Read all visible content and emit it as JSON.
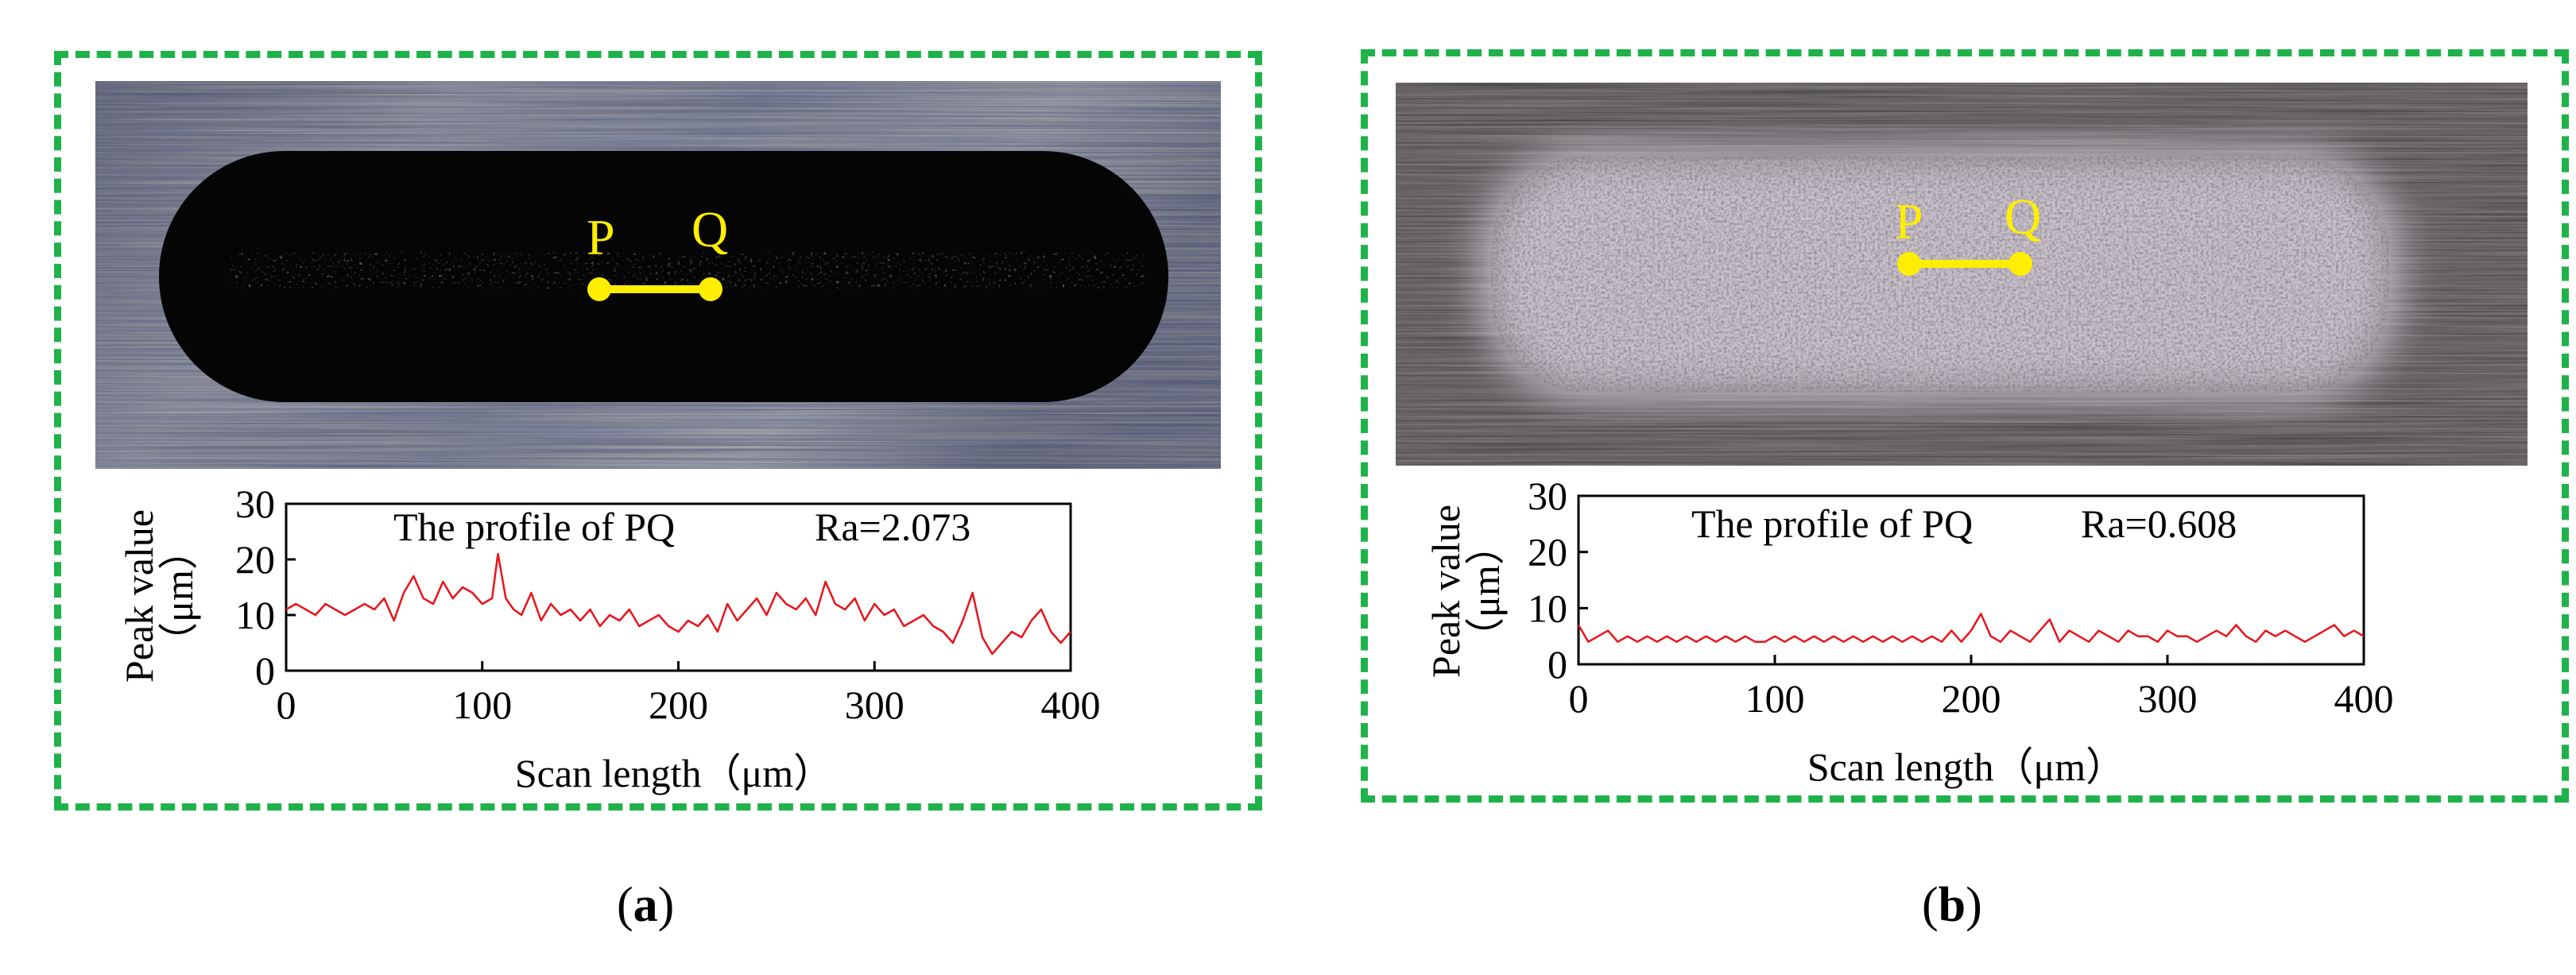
{
  "panels": [
    {
      "id": "a",
      "label": "a",
      "image": {
        "marker_start": "P",
        "marker_end": "Q",
        "colors": {
          "background": "#6a7a98",
          "wear_track": "#050505",
          "marker": "#ffee00"
        }
      },
      "chart_data": {
        "type": "line",
        "annotation": "The profile of PQ",
        "ra": "Ra=2.073",
        "xlabel": "Scan length（μm）",
        "ylabel_line1": "Peak value",
        "ylabel_line2": "（μm）",
        "xlim": [
          0,
          400
        ],
        "ylim": [
          0,
          30
        ],
        "xticks": [
          "0",
          "100",
          "200",
          "300",
          "400"
        ],
        "yticks": [
          "0",
          "10",
          "20",
          "30"
        ],
        "line_color": "#e8141b",
        "series": [
          {
            "x": [
              0,
              5,
              10,
              15,
              20,
              25,
              30,
              35,
              40,
              45,
              50,
              55,
              60,
              65,
              70,
              75,
              80,
              85,
              90,
              95,
              100,
              105,
              108,
              112,
              116,
              120,
              125,
              130,
              135,
              140,
              145,
              150,
              155,
              160,
              165,
              170,
              175,
              180,
              185,
              190,
              195,
              200,
              205,
              210,
              215,
              220,
              225,
              230,
              235,
              240,
              245,
              250,
              255,
              260,
              265,
              270,
              275,
              280,
              285,
              290,
              295,
              300,
              305,
              310,
              315,
              320,
              325,
              330,
              335,
              340,
              345,
              350,
              355,
              360,
              365,
              370,
              375,
              380,
              385,
              390,
              395,
              400
            ],
            "y": [
              11,
              12,
              11,
              10,
              12,
              11,
              10,
              11,
              12,
              11,
              13,
              9,
              14,
              17,
              13,
              12,
              16,
              13,
              15,
              14,
              12,
              13,
              21,
              13,
              11,
              10,
              14,
              9,
              12,
              10,
              11,
              9,
              11,
              8,
              10,
              9,
              11,
              8,
              9,
              10,
              8,
              7,
              9,
              8,
              10,
              7,
              12,
              9,
              11,
              13,
              10,
              14,
              12,
              11,
              13,
              10,
              16,
              12,
              11,
              13,
              9,
              12,
              10,
              11,
              8,
              9,
              10,
              8,
              7,
              5,
              9,
              14,
              6,
              3,
              5,
              7,
              6,
              9,
              11,
              7,
              5,
              7
            ]
          }
        ]
      }
    },
    {
      "id": "b",
      "label": "b",
      "image": {
        "marker_start": "P",
        "marker_end": "Q",
        "colors": {
          "background": "#3e3c3e",
          "wear_track": "#c9c2cc",
          "marker": "#ffee00"
        }
      },
      "chart_data": {
        "type": "line",
        "annotation": "The profile of PQ",
        "ra": "Ra=0.608",
        "xlabel": "Scan length（μm）",
        "ylabel_line1": "Peak value",
        "ylabel_line2": "（μm）",
        "xlim": [
          0,
          400
        ],
        "ylim": [
          0,
          30
        ],
        "xticks": [
          "0",
          "100",
          "200",
          "300",
          "400"
        ],
        "yticks": [
          "0",
          "10",
          "20",
          "30"
        ],
        "line_color": "#e8141b",
        "series": [
          {
            "x": [
              0,
              5,
              10,
              15,
              20,
              25,
              30,
              35,
              40,
              45,
              50,
              55,
              60,
              65,
              70,
              75,
              80,
              85,
              90,
              95,
              100,
              105,
              110,
              115,
              120,
              125,
              130,
              135,
              140,
              145,
              150,
              155,
              160,
              165,
              170,
              175,
              180,
              185,
              190,
              195,
              200,
              205,
              210,
              215,
              220,
              225,
              230,
              235,
              240,
              245,
              250,
              255,
              260,
              265,
              270,
              275,
              280,
              285,
              290,
              295,
              300,
              305,
              310,
              315,
              320,
              325,
              330,
              335,
              340,
              345,
              350,
              355,
              360,
              365,
              370,
              375,
              380,
              385,
              390,
              395,
              400
            ],
            "y": [
              7,
              4,
              5,
              6,
              4,
              5,
              4,
              5,
              4,
              5,
              4,
              5,
              4,
              5,
              4,
              5,
              4,
              5,
              4,
              4,
              5,
              4,
              5,
              4,
              5,
              4,
              5,
              4,
              5,
              4,
              5,
              4,
              5,
              4,
              5,
              4,
              5,
              4,
              6,
              4,
              6,
              9,
              5,
              4,
              6,
              5,
              4,
              6,
              8,
              4,
              6,
              5,
              4,
              6,
              5,
              4,
              6,
              5,
              5,
              4,
              6,
              5,
              5,
              4,
              5,
              6,
              5,
              7,
              5,
              4,
              6,
              5,
              6,
              5,
              4,
              5,
              6,
              7,
              5,
              6,
              5
            ]
          }
        ]
      }
    }
  ]
}
